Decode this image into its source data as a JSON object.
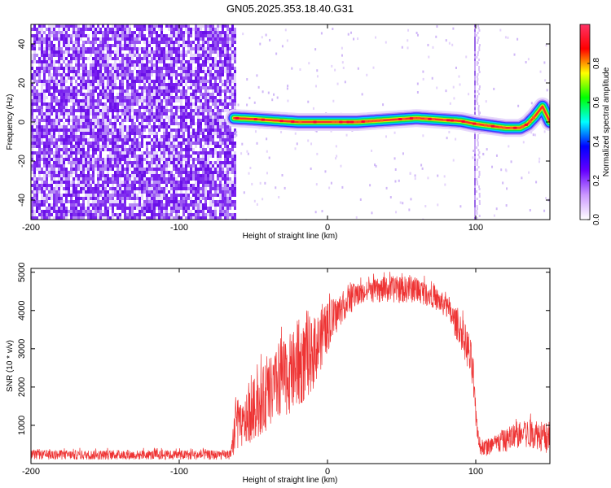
{
  "title": "GN05.2025.353.18.40.G31",
  "chart_data": [
    {
      "type": "heatmap",
      "xlabel": "Height of straight line (km)",
      "ylabel": "Frequency (Hz)",
      "xlim": [
        -200,
        150
      ],
      "ylim": [
        -50,
        50
      ],
      "x_ticks": [
        {
          "v": -200,
          "t": "-200"
        },
        {
          "v": -100,
          "t": "-100"
        },
        {
          "v": 0,
          "t": "0"
        },
        {
          "v": 100,
          "t": "100"
        }
      ],
      "y_ticks": [
        {
          "v": -40,
          "t": "-40"
        },
        {
          "v": -20,
          "t": "-20"
        },
        {
          "v": 0,
          "t": "0"
        },
        {
          "v": 20,
          "t": "20"
        },
        {
          "v": 40,
          "t": "40"
        }
      ],
      "noise_region_x": [
        -200,
        -63
      ],
      "interference_line_x": 100,
      "ridge": {
        "x": [
          -63,
          -50,
          -40,
          -30,
          -20,
          -10,
          0,
          10,
          20,
          30,
          40,
          50,
          60,
          70,
          80,
          90,
          100,
          110,
          120,
          130,
          135,
          140,
          145,
          150
        ],
        "y": [
          2,
          1.5,
          1,
          0.5,
          0,
          0,
          0,
          0,
          0,
          0.5,
          1,
          1.5,
          2,
          1.5,
          1,
          0.5,
          -1,
          -2,
          -3,
          -3,
          -1,
          3,
          8,
          0
        ]
      },
      "colorbar": {
        "label": "Normalized spectral amplitude",
        "min": 0,
        "max": 1,
        "ticks": [
          {
            "v": 0.0,
            "t": "0.0"
          },
          {
            "v": 0.2,
            "t": "0.2"
          },
          {
            "v": 0.4,
            "t": "0.4"
          },
          {
            "v": 0.6,
            "t": "0.6"
          },
          {
            "v": 0.8,
            "t": "0.8"
          }
        ],
        "colors": [
          "#ffffff",
          "#cc99ff",
          "#6600ff",
          "#0000ff",
          "#00ffff",
          "#00ff00",
          "#ffff00",
          "#ff0000",
          "#ff3366"
        ]
      }
    },
    {
      "type": "line",
      "xlabel": "Height of straight line (km)",
      "ylabel": "SNR (10 * v/v)",
      "xlim": [
        -200,
        150
      ],
      "ylim": [
        0,
        5100
      ],
      "x_ticks": [
        {
          "v": -200,
          "t": "-200"
        },
        {
          "v": -100,
          "t": "-100"
        },
        {
          "v": 0,
          "t": "0"
        },
        {
          "v": 100,
          "t": "100"
        }
      ],
      "y_ticks": [
        {
          "v": 1000,
          "t": "1000"
        },
        {
          "v": 2000,
          "t": "2000"
        },
        {
          "v": 3000,
          "t": "3000"
        },
        {
          "v": 4000,
          "t": "4000"
        },
        {
          "v": 5000,
          "t": "5000"
        }
      ],
      "color": "#ee3333",
      "envelope": {
        "x": [
          -200,
          -100,
          -65,
          -62,
          -58,
          -50,
          -40,
          -30,
          -20,
          -10,
          0,
          10,
          20,
          30,
          40,
          50,
          60,
          70,
          80,
          90,
          95,
          98,
          100,
          103,
          110,
          120,
          130,
          140,
          150
        ],
        "low": [
          100,
          100,
          100,
          300,
          400,
          600,
          900,
          1200,
          1400,
          1900,
          2900,
          3700,
          4100,
          4200,
          4200,
          4200,
          4200,
          4100,
          3800,
          3000,
          2400,
          1800,
          900,
          200,
          200,
          300,
          400,
          400,
          200
        ],
        "high": [
          350,
          350,
          350,
          1800,
          1500,
          2200,
          2700,
          3200,
          3600,
          3800,
          4200,
          4500,
          4700,
          4800,
          4900,
          4900,
          4900,
          4700,
          4400,
          3900,
          3500,
          3000,
          1500,
          600,
          700,
          900,
          1100,
          1200,
          1000
        ]
      }
    }
  ]
}
